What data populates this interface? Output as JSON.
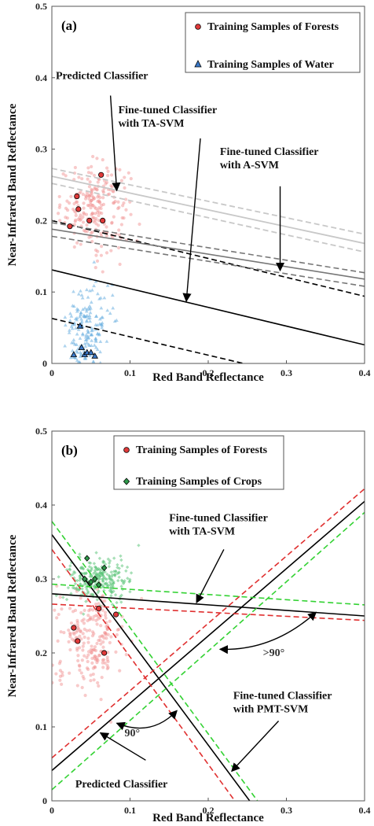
{
  "chart_data": [
    {
      "type": "scatter",
      "panel_label": "(a)",
      "xlabel": "Red Band Reflectance",
      "ylabel": "Near-Infrared Band Reflectance",
      "xlim": [
        0,
        0.4
      ],
      "ylim": [
        0,
        0.5
      ],
      "x_ticks": [
        "0",
        "0.1",
        "0.2",
        "0.3",
        "0.4"
      ],
      "y_ticks": [
        "0",
        "0.1",
        "0.2",
        "0.3",
        "0.4",
        "0.5"
      ],
      "grid": false,
      "legend_position": "top-right",
      "legend": [
        {
          "label": "Training Samples of Forests",
          "marker": "circle",
          "color": "#e03a3a"
        },
        {
          "label": "Training Samples of Water",
          "marker": "triangle",
          "color": "#3a78c8"
        }
      ],
      "training_forests": [
        [
          0.023,
          0.192
        ],
        [
          0.032,
          0.234
        ],
        [
          0.034,
          0.216
        ],
        [
          0.063,
          0.264
        ],
        [
          0.065,
          0.2
        ],
        [
          0.048,
          0.2
        ]
      ],
      "training_water": [
        [
          0.028,
          0.012
        ],
        [
          0.036,
          0.052
        ],
        [
          0.038,
          0.022
        ],
        [
          0.042,
          0.012
        ],
        [
          0.045,
          0.015
        ],
        [
          0.05,
          0.015
        ],
        [
          0.055,
          0.01
        ]
      ],
      "clouds": [
        {
          "name": "forests",
          "color": "#f08a8a",
          "center": [
            0.055,
            0.22
          ],
          "spread": [
            0.022,
            0.03
          ],
          "count": 220
        },
        {
          "name": "water",
          "color": "#6aaee0",
          "center": [
            0.045,
            0.04
          ],
          "spread": [
            0.014,
            0.035
          ],
          "count": 200
        }
      ],
      "lines": [
        {
          "role": "TA-SVM solid",
          "color": "#000000",
          "dash": false,
          "width": 1.6,
          "p1": [
            0,
            0.131
          ],
          "p2": [
            0.4,
            0.026
          ]
        },
        {
          "role": "TA-SVM margin",
          "color": "#000000",
          "dash": true,
          "width": 1.6,
          "p1": [
            0,
            0.2
          ],
          "p2": [
            0.4,
            0.094
          ]
        },
        {
          "role": "TA-SVM margin",
          "color": "#000000",
          "dash": true,
          "width": 1.6,
          "p1": [
            0,
            0.063
          ],
          "p2": [
            0.245,
            0
          ]
        },
        {
          "role": "A-SVM solid",
          "color": "#777777",
          "dash": false,
          "width": 1.6,
          "p1": [
            0,
            0.188
          ],
          "p2": [
            0.4,
            0.118
          ]
        },
        {
          "role": "A-SVM margin",
          "color": "#777777",
          "dash": true,
          "width": 1.6,
          "p1": [
            0,
            0.197
          ],
          "p2": [
            0.4,
            0.127
          ]
        },
        {
          "role": "A-SVM margin",
          "color": "#777777",
          "dash": true,
          "width": 1.6,
          "p1": [
            0,
            0.178
          ],
          "p2": [
            0.4,
            0.108
          ]
        },
        {
          "role": "predicted solid",
          "color": "#c8c8c8",
          "dash": false,
          "width": 1.8,
          "p1": [
            0,
            0.262
          ],
          "p2": [
            0.4,
            0.168
          ]
        },
        {
          "role": "predicted margin",
          "color": "#c8c8c8",
          "dash": true,
          "width": 1.8,
          "p1": [
            0,
            0.273
          ],
          "p2": [
            0.4,
            0.181
          ]
        },
        {
          "role": "predicted margin",
          "color": "#c8c8c8",
          "dash": true,
          "width": 1.8,
          "p1": [
            0,
            0.252
          ],
          "p2": [
            0.4,
            0.156
          ]
        }
      ],
      "annotations": [
        {
          "lines": [
            "Predicted Classifier"
          ],
          "anchor": [
            0.005,
            0.398
          ],
          "arrow_from": [
            0.075,
            0.375
          ],
          "arrow_to": [
            0.083,
            0.242
          ]
        },
        {
          "lines": [
            "Fine-tuned Classifier",
            "with TA-SVM"
          ],
          "anchor": [
            0.085,
            0.35
          ],
          "arrow_from": [
            0.19,
            0.315
          ],
          "arrow_to": [
            0.172,
            0.087
          ]
        },
        {
          "lines": [
            "Fine-tuned Classifier",
            "with A-SVM"
          ],
          "anchor": [
            0.215,
            0.292
          ],
          "arrow_from": [
            0.292,
            0.248
          ],
          "arrow_to": [
            0.292,
            0.13
          ]
        }
      ]
    },
    {
      "type": "scatter",
      "panel_label": "(b)",
      "xlabel": "Red Band Reflectance",
      "ylabel": "Near-Infrared Band Reflectance",
      "xlim": [
        0,
        0.4
      ],
      "ylim": [
        0,
        0.5
      ],
      "x_ticks": [
        "0",
        "0.1",
        "0.2",
        "0.3",
        "0.4"
      ],
      "y_ticks": [
        "0",
        "0.1",
        "0.2",
        "0.3",
        "0.4",
        "0.5"
      ],
      "grid": false,
      "legend_position": "top-left",
      "legend": [
        {
          "label": "Training Samples of Forests",
          "marker": "circle",
          "color": "#e03a3a"
        },
        {
          "label": "Training Samples of Crops",
          "marker": "diamond",
          "color": "#2e9a4a"
        }
      ],
      "training_forests": [
        [
          0.028,
          0.234
        ],
        [
          0.033,
          0.216
        ],
        [
          0.06,
          0.26
        ],
        [
          0.067,
          0.2
        ],
        [
          0.082,
          0.252
        ]
      ],
      "training_crops": [
        [
          0.042,
          0.3
        ],
        [
          0.05,
          0.296
        ],
        [
          0.055,
          0.3
        ],
        [
          0.06,
          0.292
        ],
        [
          0.045,
          0.328
        ],
        [
          0.067,
          0.315
        ]
      ],
      "clouds": [
        {
          "name": "forests",
          "color": "#f08a8a",
          "center": [
            0.048,
            0.22
          ],
          "spread": [
            0.022,
            0.032
          ],
          "count": 220
        },
        {
          "name": "crops",
          "color": "#5cc47a",
          "center": [
            0.058,
            0.3
          ],
          "spread": [
            0.02,
            0.014
          ],
          "count": 260
        }
      ],
      "lines": [
        {
          "role": "TA-SVM solid",
          "color": "#000000",
          "dash": false,
          "width": 1.6,
          "p1": [
            0,
            0.28
          ],
          "p2": [
            0.4,
            0.25
          ]
        },
        {
          "role": "TA-SVM solid",
          "color": "#000000",
          "dash": false,
          "width": 1.6,
          "p1": [
            0,
            0.36
          ],
          "p2": [
            0.253,
            0
          ]
        },
        {
          "role": "TA-SVM solid",
          "color": "#000000",
          "dash": false,
          "width": 1.6,
          "p1": [
            0,
            0.041
          ],
          "p2": [
            0.4,
            0.405
          ]
        },
        {
          "role": "PMT-SVM margin",
          "color": "#e03030",
          "dash": true,
          "width": 1.6,
          "p1": [
            0,
            0.266
          ],
          "p2": [
            0.4,
            0.244
          ]
        },
        {
          "role": "PMT-SVM margin",
          "color": "#e03030",
          "dash": true,
          "width": 1.6,
          "p1": [
            0,
            0.34
          ],
          "p2": [
            0.234,
            0
          ]
        },
        {
          "role": "PMT-SVM margin",
          "color": "#e03030",
          "dash": true,
          "width": 1.6,
          "p1": [
            0,
            0.058
          ],
          "p2": [
            0.4,
            0.422
          ]
        },
        {
          "role": "PMT-SVM margin",
          "color": "#33d233",
          "dash": true,
          "width": 1.6,
          "p1": [
            0,
            0.293
          ],
          "p2": [
            0.4,
            0.265
          ]
        },
        {
          "role": "PMT-SVM margin",
          "color": "#33d233",
          "dash": true,
          "width": 1.6,
          "p1": [
            0,
            0.378
          ],
          "p2": [
            0.263,
            0
          ]
        },
        {
          "role": "PMT-SVM margin",
          "color": "#33d233",
          "dash": true,
          "width": 1.6,
          "p1": [
            0,
            0.015
          ],
          "p2": [
            0.4,
            0.39
          ]
        }
      ],
      "annotations": [
        {
          "lines": [
            "Fine-tuned Classifier",
            "with TA-SVM"
          ],
          "anchor": [
            0.15,
            0.378
          ],
          "arrow_from": [
            0.22,
            0.34
          ],
          "arrow_to": [
            0.185,
            0.268
          ]
        },
        {
          "lines": [
            "Fine-tuned Classifier",
            "with PMT-SVM"
          ],
          "anchor": [
            0.232,
            0.138
          ],
          "arrow_from": [
            0.29,
            0.108
          ],
          "arrow_to": [
            0.23,
            0.04
          ]
        },
        {
          "lines": [
            "Predicted Classifier"
          ],
          "anchor": [
            0.03,
            0.018
          ],
          "arrow_from": [
            0.12,
            0.055
          ],
          "arrow_to": [
            0.062,
            0.092
          ]
        }
      ],
      "angle_labels": [
        {
          "text": ">90°",
          "at": [
            0.27,
            0.196
          ]
        },
        {
          "text": "90°",
          "at": [
            0.093,
            0.087
          ]
        }
      ],
      "angle_arcs": [
        {
          "from": [
            0.215,
            0.205
          ],
          "to": [
            0.338,
            0.255
          ]
        },
        {
          "from": [
            0.083,
            0.105
          ],
          "to": [
            0.16,
            0.122
          ]
        }
      ]
    }
  ]
}
